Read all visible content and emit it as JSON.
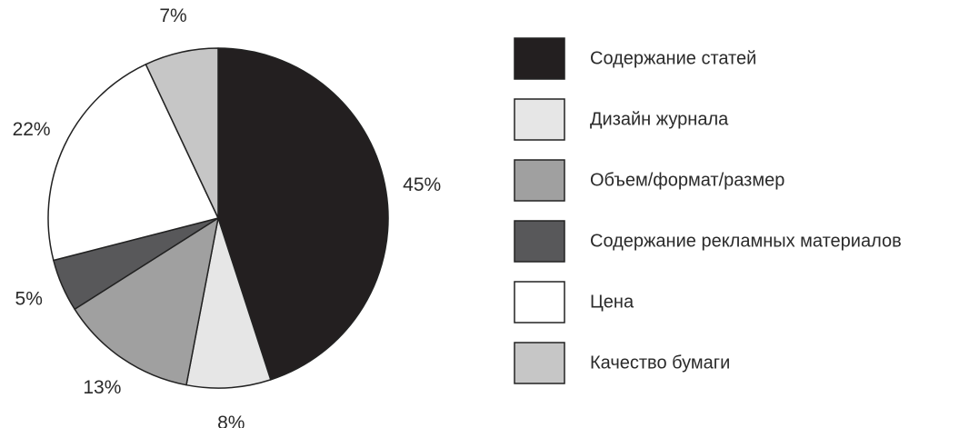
{
  "chart_data": {
    "type": "pie",
    "title": "",
    "start": "12 o'clock",
    "direction": "clockwise",
    "legend_position": "right",
    "slices": [
      {
        "label": "Содержание статей",
        "value": 45,
        "value_label": "45%",
        "color": "#231f20"
      },
      {
        "label": "Дизайн журнала",
        "value": 8,
        "value_label": "8%",
        "color": "#e6e6e6"
      },
      {
        "label": "Объем/формат/размер",
        "value": 13,
        "value_label": "13%",
        "color": "#a0a0a0"
      },
      {
        "label": "Содержание рекламных материалов",
        "value": 5,
        "value_label": "5%",
        "color": "#58585a"
      },
      {
        "label": "Цена",
        "value": 22,
        "value_label": "22%",
        "color": "#ffffff"
      },
      {
        "label": "Качество бумаги",
        "value": 7,
        "value_label": "7%",
        "color": "#c6c6c6"
      }
    ]
  }
}
